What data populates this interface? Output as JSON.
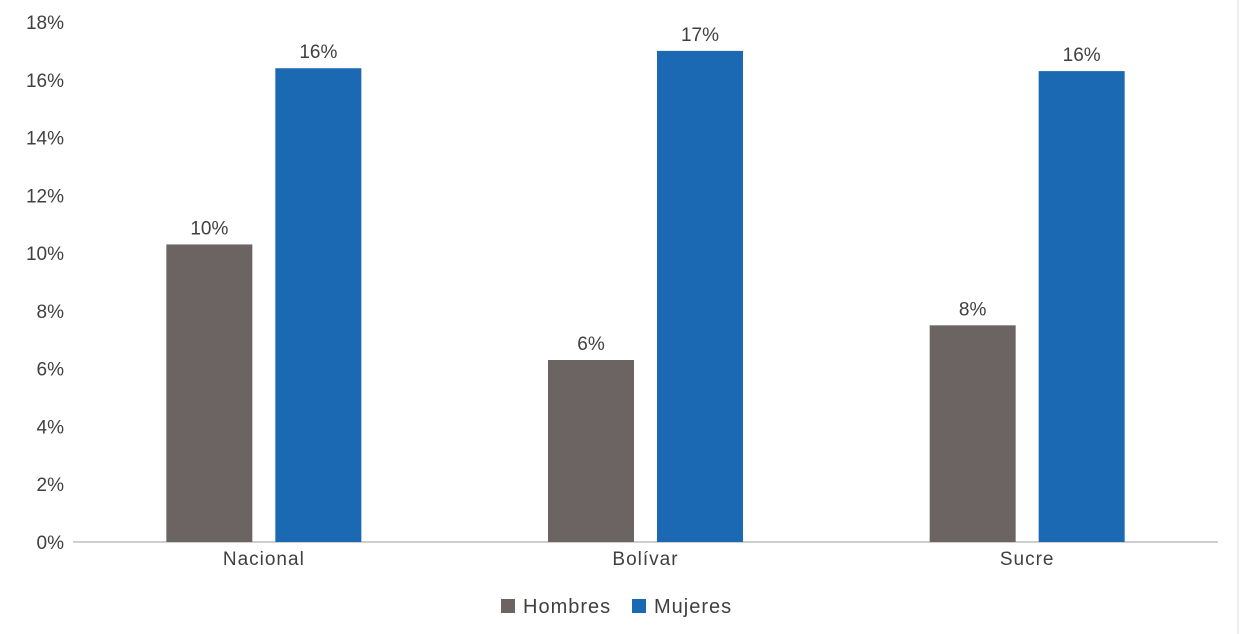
{
  "chart_data": {
    "type": "bar",
    "categories": [
      "Nacional",
      "Bolívar",
      "Sucre"
    ],
    "series": [
      {
        "name": "Hombres",
        "color": "#6b6462",
        "values": [
          10.3,
          6.3,
          7.5
        ],
        "labels": [
          "10%",
          "6%",
          "8%"
        ]
      },
      {
        "name": "Mujeres",
        "color": "#1b68b3",
        "values": [
          16.4,
          17.0,
          16.3
        ],
        "labels": [
          "16%",
          "17%",
          "16%"
        ]
      }
    ],
    "ylim": [
      0,
      18
    ],
    "y_ticks": [
      0,
      2,
      4,
      6,
      8,
      10,
      12,
      14,
      16,
      18
    ],
    "y_tick_labels": [
      "0%",
      "2%",
      "4%",
      "6%",
      "8%",
      "10%",
      "12%",
      "14%",
      "16%",
      "18%"
    ],
    "title": "",
    "xlabel": "",
    "ylabel": "",
    "grid": false,
    "legend_position": "bottom"
  }
}
